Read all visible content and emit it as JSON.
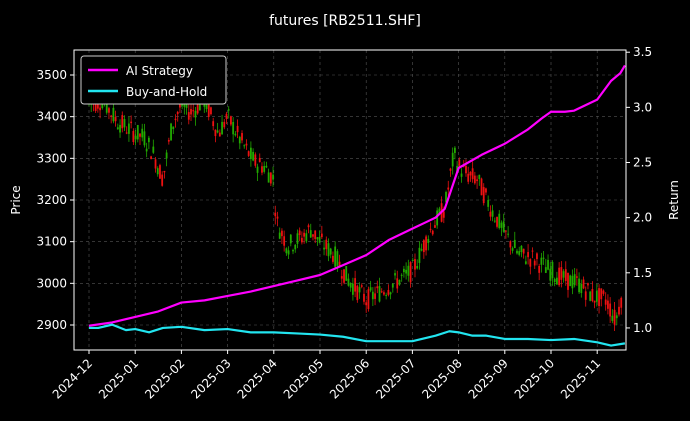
{
  "chart_data": {
    "type": "line",
    "title": "futures [RB2511.SHF]",
    "ylabel_left": "Price",
    "ylabel_right": "Return",
    "ylim_left": [
      2840,
      3560
    ],
    "ylim_right": [
      0.8,
      3.52
    ],
    "ticks_left": [
      2900,
      3000,
      3100,
      3200,
      3300,
      3400,
      3500
    ],
    "ticks_right": [
      "1.0",
      "1.5",
      "2.0",
      "2.5",
      "3.0",
      "3.5"
    ],
    "x_ticks": [
      "2024-12",
      "2025-01",
      "2025-02",
      "2025-03",
      "2025-04",
      "2025-05",
      "2025-06",
      "2025-07",
      "2025-08",
      "2025-09",
      "2025-10",
      "2025-11"
    ],
    "grid": true,
    "legend_position": "top-left",
    "colors": {
      "strategy": "#ff00ff",
      "buyhold": "#22e5f0",
      "candle_up": "#22aa00",
      "candle_down": "#ee1111",
      "grid": "#555555",
      "axes": "#ffffff"
    },
    "series": [
      {
        "name": "AI Strategy",
        "x": [
          0,
          0.5,
          1.0,
          1.5,
          2.0,
          2.5,
          3.0,
          3.5,
          4.0,
          4.5,
          5.0,
          5.5,
          6.0,
          6.5,
          7.0,
          7.3,
          7.5,
          7.7,
          8.0,
          8.5,
          9.0,
          9.5,
          9.8,
          10.0,
          10.3,
          10.5,
          11.0,
          11.3,
          11.5,
          11.6
        ],
        "values": [
          1.02,
          1.05,
          1.1,
          1.15,
          1.23,
          1.25,
          1.29,
          1.33,
          1.38,
          1.43,
          1.48,
          1.57,
          1.66,
          1.8,
          1.9,
          1.96,
          2.0,
          2.08,
          2.45,
          2.57,
          2.67,
          2.8,
          2.9,
          2.96,
          2.96,
          2.97,
          3.07,
          3.24,
          3.31,
          3.38
        ]
      },
      {
        "name": "Buy-and-Hold",
        "x": [
          0,
          0.2,
          0.5,
          0.8,
          1.0,
          1.3,
          1.6,
          2.0,
          2.5,
          3.0,
          3.5,
          4.0,
          4.5,
          5.0,
          5.5,
          6.0,
          6.5,
          7.0,
          7.5,
          7.8,
          8.0,
          8.3,
          8.6,
          9.0,
          9.5,
          10.0,
          10.5,
          11.0,
          11.3,
          11.6
        ],
        "values": [
          1.0,
          1.0,
          1.03,
          0.98,
          0.99,
          0.96,
          1.0,
          1.01,
          0.98,
          0.99,
          0.96,
          0.96,
          0.95,
          0.94,
          0.92,
          0.88,
          0.88,
          0.88,
          0.93,
          0.97,
          0.96,
          0.93,
          0.93,
          0.9,
          0.9,
          0.89,
          0.9,
          0.87,
          0.84,
          0.86
        ]
      },
      {
        "name": "price",
        "x": [
          0,
          0.3,
          0.6,
          1.0,
          1.2,
          1.4,
          1.6,
          1.8,
          2.0,
          2.2,
          2.5,
          2.8,
          3.0,
          3.2,
          3.4,
          3.6,
          3.8,
          4.0,
          4.05,
          4.3,
          4.6,
          4.8,
          5.0,
          5.3,
          5.6,
          6.0,
          6.3,
          6.6,
          7.0,
          7.2,
          7.4,
          7.7,
          7.9,
          8.0,
          8.2,
          8.4,
          8.7,
          9.0,
          9.3,
          9.6,
          10.0,
          10.3,
          10.6,
          10.9,
          11.2,
          11.4,
          11.55
        ],
        "values": [
          3430,
          3440,
          3390,
          3360,
          3350,
          3310,
          3250,
          3380,
          3430,
          3410,
          3440,
          3360,
          3400,
          3360,
          3320,
          3290,
          3280,
          3250,
          3150,
          3090,
          3110,
          3130,
          3100,
          3070,
          3010,
          2960,
          2980,
          3000,
          3030,
          3080,
          3130,
          3180,
          3310,
          3280,
          3260,
          3250,
          3180,
          3120,
          3070,
          3060,
          3030,
          3010,
          3000,
          2970,
          2960,
          2910,
          2980
        ]
      }
    ]
  }
}
